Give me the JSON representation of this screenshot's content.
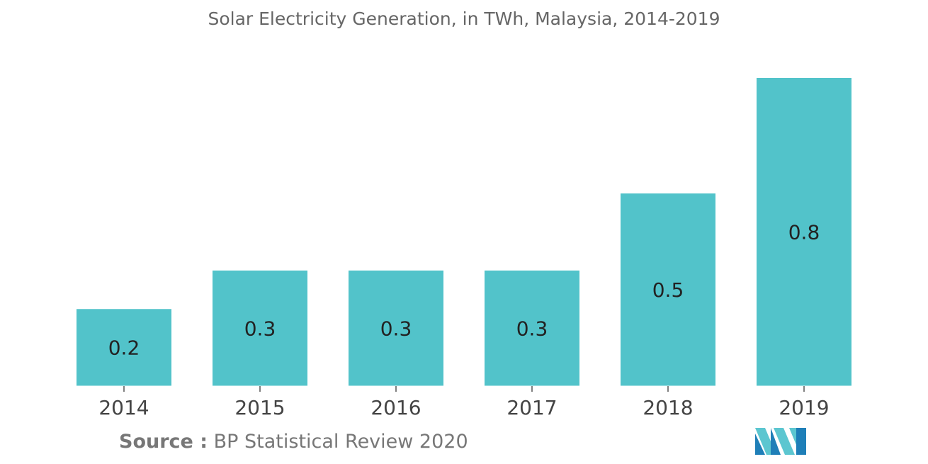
{
  "chart_data": {
    "type": "bar",
    "title": "Solar Electricity Generation, in TWh, Malaysia, 2014-2019",
    "categories": [
      "2014",
      "2015",
      "2016",
      "2017",
      "2018",
      "2019"
    ],
    "values": [
      0.2,
      0.3,
      0.3,
      0.3,
      0.5,
      0.8
    ],
    "data_labels": [
      "0.2",
      "0.3",
      "0.3",
      "0.3",
      "0.5",
      "0.8"
    ],
    "xlabel": "",
    "ylabel": "",
    "ylim": [
      0,
      0.8
    ],
    "grid": false,
    "legend": "none",
    "bar_color": "#52C3CA"
  },
  "source": {
    "label": "Source :",
    "text": "BP Statistical Review 2020"
  },
  "logo": {
    "icon": "mordor-intelligence-logo-icon",
    "colors": [
      "#1F7FB8",
      "#5CC6D0"
    ]
  }
}
